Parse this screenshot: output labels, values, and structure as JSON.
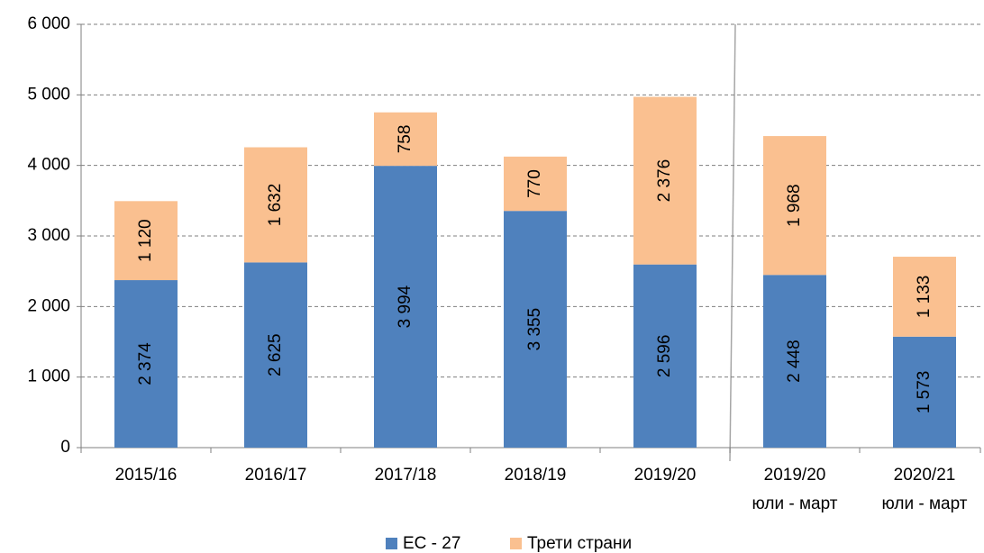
{
  "chart_data": {
    "type": "stacked_bar",
    "categories": [
      [
        "2015/16"
      ],
      [
        "2016/17"
      ],
      [
        "2017/18"
      ],
      [
        "2018/19"
      ],
      [
        "2019/20"
      ],
      [
        "2019/20",
        "юли - март"
      ],
      [
        "2020/21",
        "юли - март"
      ]
    ],
    "series": [
      {
        "name": "ЕС - 27",
        "color": "#4f81bd",
        "values": [
          2374,
          2625,
          3994,
          3355,
          2596,
          2448,
          1573
        ],
        "value_labels": [
          "2 374",
          "2 625",
          "3 994",
          "3 355",
          "2 596",
          "2 448",
          "1 573"
        ]
      },
      {
        "name": "Трети страни",
        "color": "#fac090",
        "values": [
          1120,
          1632,
          758,
          770,
          2376,
          1968,
          1133
        ],
        "value_labels": [
          "1 120",
          "1 632",
          "758",
          "770",
          "2 376",
          "1 968",
          "1 133"
        ]
      }
    ],
    "ylim": [
      0,
      6000
    ],
    "yticks": [
      0,
      {
        "value": 1000,
        "label": "1 000"
      },
      {
        "value": 2000,
        "label": "2 000"
      },
      {
        "value": 3000,
        "label": "3 000"
      },
      {
        "value": 4000,
        "label": "4 000"
      },
      {
        "value": 5000,
        "label": "5 000"
      },
      {
        "value": 6000,
        "label": "6 000"
      }
    ],
    "grid": true,
    "legend": "bottom"
  }
}
